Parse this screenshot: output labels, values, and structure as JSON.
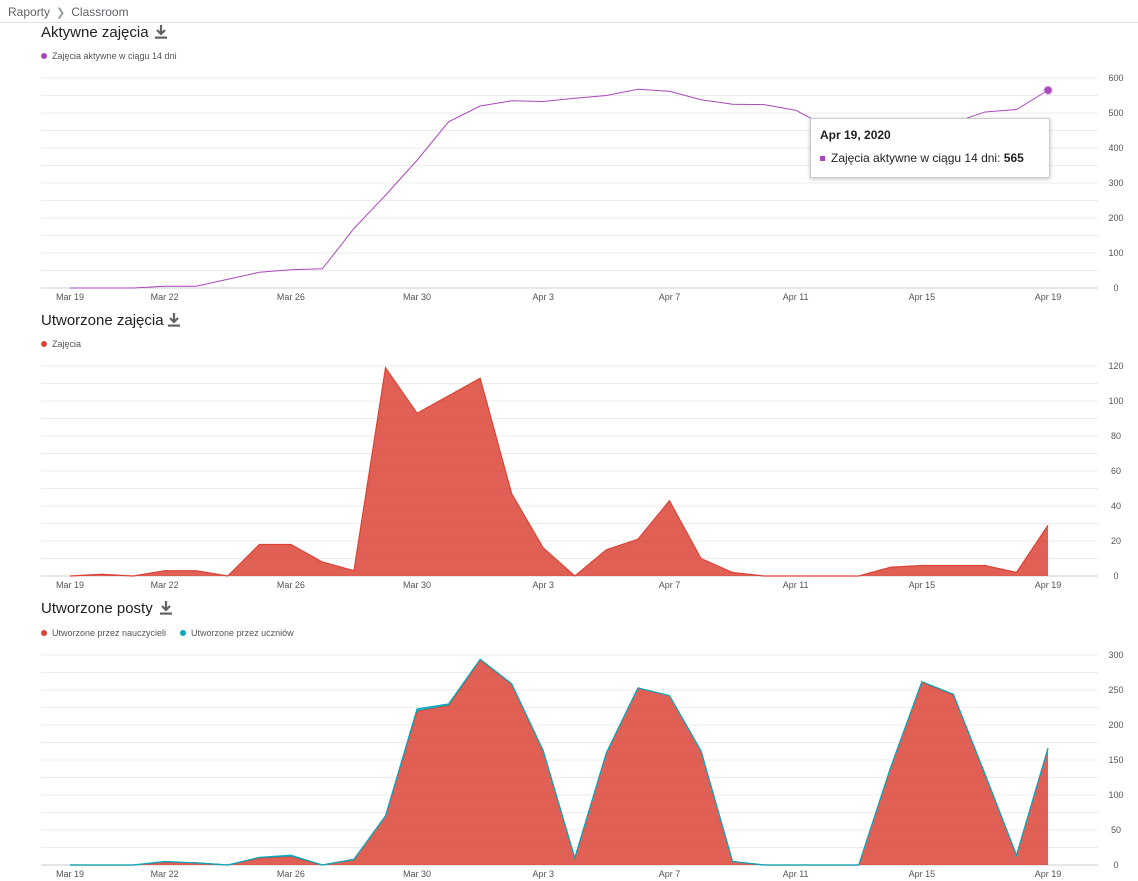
{
  "breadcrumb": {
    "root": "Raporty",
    "current": "Classroom"
  },
  "x_labels": [
    "Mar 19",
    "Mar 22",
    "Mar 26",
    "Mar 30",
    "Apr 3",
    "Apr 7",
    "Apr 11",
    "Apr 15",
    "Apr 19"
  ],
  "charts": {
    "active": {
      "title": "Aktywne zajęcia",
      "legend": "Zajęcia aktywne w ciągu 14 dni",
      "color": "#ab47bc"
    },
    "created": {
      "title": "Utworzone zajęcia",
      "legend": "Zajęcia",
      "color": "#db4437"
    },
    "posts": {
      "title": "Utworzone posty",
      "legend_teachers": "Utworzone przez nauczycieli",
      "legend_students": "Utworzone przez uczniów",
      "color_teachers": "#db4437",
      "color_students": "#00acc1"
    }
  },
  "tooltip": {
    "date": "Apr 19, 2020",
    "label": "Zajęcia aktywne w ciągu 14 dni: ",
    "value": "565"
  },
  "chart_data": [
    {
      "type": "line",
      "title": "Aktywne zajęcia",
      "x": [
        "Mar 19",
        "Mar 20",
        "Mar 21",
        "Mar 22",
        "Mar 23",
        "Mar 24",
        "Mar 25",
        "Mar 26",
        "Mar 27",
        "Mar 28",
        "Mar 29",
        "Mar 30",
        "Mar 31",
        "Apr 1",
        "Apr 2",
        "Apr 3",
        "Apr 4",
        "Apr 5",
        "Apr 6",
        "Apr 7",
        "Apr 8",
        "Apr 9",
        "Apr 10",
        "Apr 11",
        "Apr 12",
        "Apr 13",
        "Apr 14",
        "Apr 15",
        "Apr 16",
        "Apr 17",
        "Apr 18",
        "Apr 19"
      ],
      "series": [
        {
          "name": "Zajęcia aktywne w ciągu 14 dni",
          "values": [
            0,
            0,
            0,
            5,
            5,
            25,
            45,
            52,
            55,
            170,
            265,
            365,
            475,
            520,
            535,
            533,
            542,
            550,
            568,
            562,
            538,
            525,
            524,
            508,
            460,
            455,
            458,
            462,
            472,
            503,
            510,
            565
          ]
        }
      ],
      "ylim": [
        0,
        600
      ],
      "yticks": [
        0,
        100,
        200,
        300,
        400,
        500,
        600
      ]
    },
    {
      "type": "area",
      "title": "Utworzone zajęcia",
      "x": [
        "Mar 19",
        "Mar 20",
        "Mar 21",
        "Mar 22",
        "Mar 23",
        "Mar 24",
        "Mar 25",
        "Mar 26",
        "Mar 27",
        "Mar 28",
        "Mar 29",
        "Mar 30",
        "Mar 31",
        "Apr 1",
        "Apr 2",
        "Apr 3",
        "Apr 4",
        "Apr 5",
        "Apr 6",
        "Apr 7",
        "Apr 8",
        "Apr 9",
        "Apr 10",
        "Apr 11",
        "Apr 12",
        "Apr 13",
        "Apr 14",
        "Apr 15",
        "Apr 16",
        "Apr 17",
        "Apr 18",
        "Apr 19"
      ],
      "series": [
        {
          "name": "Zajęcia",
          "values": [
            0,
            1,
            0,
            3,
            3,
            0,
            18,
            18,
            8,
            3,
            119,
            93,
            103,
            113,
            47,
            16,
            0,
            15,
            21,
            43,
            10,
            2,
            0,
            0,
            0,
            0,
            5,
            6,
            6,
            6,
            2,
            29
          ]
        }
      ],
      "ylim": [
        0,
        120
      ],
      "yticks": [
        0,
        20,
        40,
        60,
        80,
        100,
        120
      ]
    },
    {
      "type": "area",
      "title": "Utworzone posty",
      "x": [
        "Mar 19",
        "Mar 20",
        "Mar 21",
        "Mar 22",
        "Mar 23",
        "Mar 24",
        "Mar 25",
        "Mar 26",
        "Mar 27",
        "Mar 28",
        "Mar 29",
        "Mar 30",
        "Mar 31",
        "Apr 1",
        "Apr 2",
        "Apr 3",
        "Apr 4",
        "Apr 5",
        "Apr 6",
        "Apr 7",
        "Apr 8",
        "Apr 9",
        "Apr 10",
        "Apr 11",
        "Apr 12",
        "Apr 13",
        "Apr 14",
        "Apr 15",
        "Apr 16",
        "Apr 17",
        "Apr 18",
        "Apr 19"
      ],
      "series": [
        {
          "name": "Utworzone przez nauczycieli",
          "values": [
            0,
            0,
            0,
            4,
            3,
            0,
            10,
            12,
            0,
            8,
            70,
            220,
            228,
            293,
            258,
            163,
            10,
            160,
            253,
            242,
            163,
            5,
            0,
            0,
            0,
            0,
            138,
            261,
            243,
            130,
            14,
            167
          ]
        },
        {
          "name": "Utworzone przez uczniów",
          "values": [
            0,
            0,
            0,
            1,
            0,
            0,
            1,
            2,
            0,
            0,
            0,
            3,
            2,
            1,
            1,
            0,
            0,
            0,
            0,
            0,
            0,
            0,
            0,
            0,
            0,
            0,
            0,
            1,
            1,
            0,
            0,
            0
          ]
        }
      ],
      "ylim": [
        0,
        300
      ],
      "yticks": [
        0,
        50,
        100,
        150,
        200,
        250,
        300
      ]
    }
  ]
}
